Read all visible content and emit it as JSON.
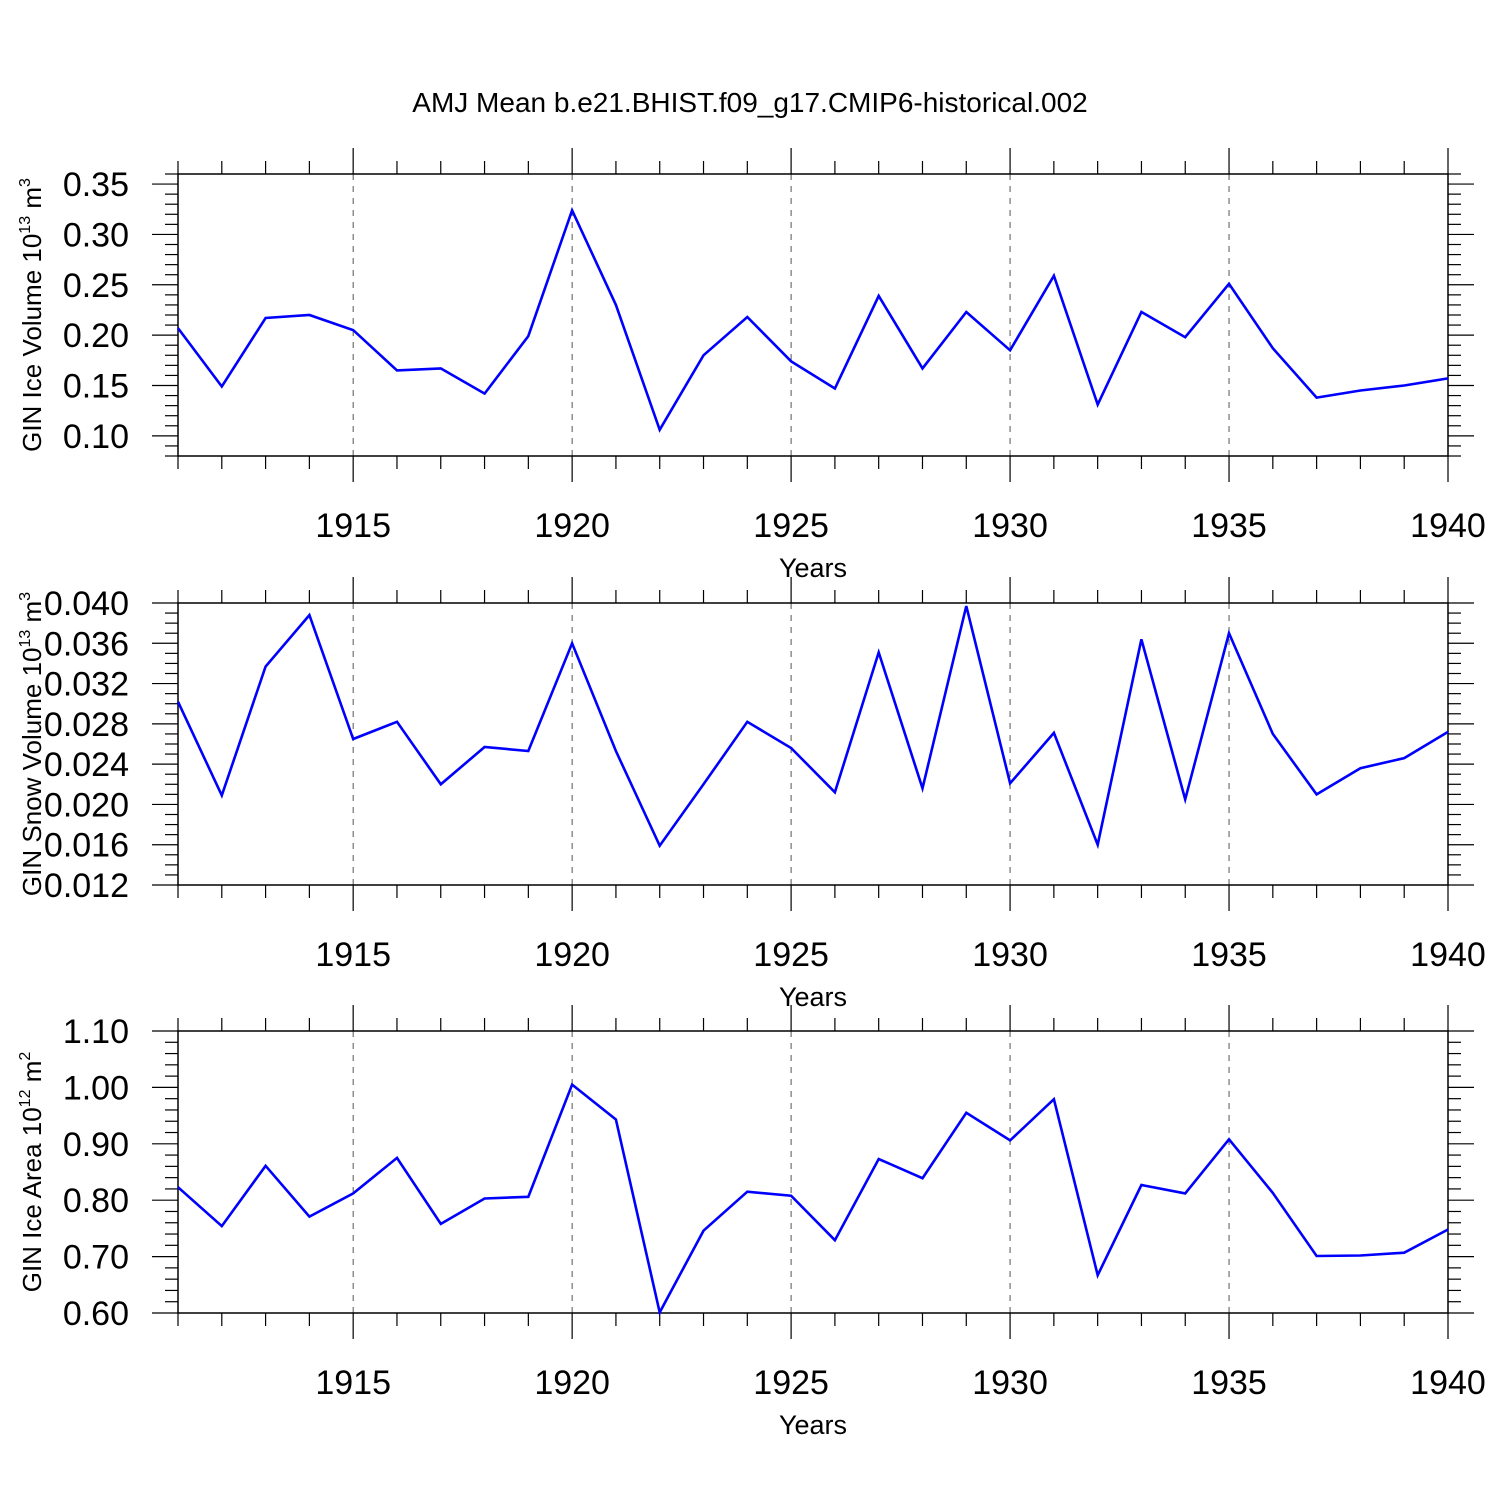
{
  "figure_title": "AMJ Mean b.e21.BHIST.f09_g17.CMIP6-historical.002",
  "colors": {
    "line": "#0000ff",
    "axis": "#000000",
    "grid": "#555555",
    "background": "#ffffff"
  },
  "chart_data": [
    {
      "type": "line",
      "name": "GIN Ice Volume",
      "ylabel": {
        "text": "GIN Ice Volume 10",
        "exponent": "13",
        "unit": "m",
        "unit_exponent": "3"
      },
      "xlabel": "Years",
      "xlim": [
        1911,
        1940
      ],
      "ylim": [
        0.08,
        0.36
      ],
      "x_ticks": [
        1915,
        1920,
        1925,
        1930,
        1935,
        1940
      ],
      "y_ticks": [
        0.1,
        0.15,
        0.2,
        0.25,
        0.3,
        0.35
      ],
      "y_tick_labels": [
        "0.10",
        "0.15",
        "0.20",
        "0.25",
        "0.30",
        "0.35"
      ],
      "y_minor_step": 0.01,
      "grid": "vertical dashed at major x ticks",
      "x": [
        1911,
        1912,
        1913,
        1914,
        1915,
        1916,
        1917,
        1918,
        1919,
        1920,
        1921,
        1922,
        1923,
        1924,
        1925,
        1926,
        1927,
        1928,
        1929,
        1930,
        1931,
        1932,
        1933,
        1934,
        1935,
        1936,
        1937,
        1938,
        1939,
        1940
      ],
      "values": [
        0.207,
        0.149,
        0.217,
        0.22,
        0.205,
        0.165,
        0.167,
        0.142,
        0.199,
        0.324,
        0.23,
        0.106,
        0.18,
        0.218,
        0.174,
        0.147,
        0.239,
        0.167,
        0.223,
        0.185,
        0.259,
        0.131,
        0.223,
        0.198,
        0.251,
        0.187,
        0.138,
        0.145,
        0.15,
        0.157
      ]
    },
    {
      "type": "line",
      "name": "GIN Snow Volume",
      "ylabel": {
        "text": "GIN Snow Volume 10",
        "exponent": "13",
        "unit": "m",
        "unit_exponent": "3"
      },
      "xlabel": "Years",
      "xlim": [
        1911,
        1940
      ],
      "ylim": [
        0.012,
        0.04
      ],
      "x_ticks": [
        1915,
        1920,
        1925,
        1930,
        1935,
        1940
      ],
      "y_ticks": [
        0.012,
        0.016,
        0.02,
        0.024,
        0.028,
        0.032,
        0.036,
        0.04
      ],
      "y_tick_labels": [
        "0.012",
        "0.016",
        "0.020",
        "0.024",
        "0.028",
        "0.032",
        "0.036",
        "0.040"
      ],
      "y_minor_step": 0.001,
      "grid": "vertical dashed at major x ticks",
      "x": [
        1911,
        1912,
        1913,
        1914,
        1915,
        1916,
        1917,
        1918,
        1919,
        1920,
        1921,
        1922,
        1923,
        1924,
        1925,
        1926,
        1927,
        1928,
        1929,
        1930,
        1931,
        1932,
        1933,
        1934,
        1935,
        1936,
        1937,
        1938,
        1939,
        1940
      ],
      "values": [
        0.0302,
        0.0209,
        0.0337,
        0.0388,
        0.0265,
        0.0282,
        0.022,
        0.0257,
        0.0253,
        0.036,
        0.0253,
        0.0159,
        0.022,
        0.0282,
        0.0256,
        0.0212,
        0.0351,
        0.0216,
        0.0397,
        0.0221,
        0.0271,
        0.016,
        0.0364,
        0.0205,
        0.037,
        0.027,
        0.021,
        0.0236,
        0.0246,
        0.0272
      ]
    },
    {
      "type": "line",
      "name": "GIN Ice Area",
      "ylabel": {
        "text": "GIN Ice Area 10",
        "exponent": "12",
        "unit": "m",
        "unit_exponent": "2"
      },
      "xlabel": "Years",
      "xlim": [
        1911,
        1940
      ],
      "ylim": [
        0.6,
        1.1
      ],
      "x_ticks": [
        1915,
        1920,
        1925,
        1930,
        1935,
        1940
      ],
      "y_ticks": [
        0.6,
        0.7,
        0.8,
        0.9,
        1.0,
        1.1
      ],
      "y_tick_labels": [
        "0.60",
        "0.70",
        "0.80",
        "0.90",
        "1.00",
        "1.10"
      ],
      "y_minor_step": 0.02,
      "grid": "vertical dashed at major x ticks",
      "x": [
        1911,
        1912,
        1913,
        1914,
        1915,
        1916,
        1917,
        1918,
        1919,
        1920,
        1921,
        1922,
        1923,
        1924,
        1925,
        1926,
        1927,
        1928,
        1929,
        1930,
        1931,
        1932,
        1933,
        1934,
        1935,
        1936,
        1937,
        1938,
        1939,
        1940
      ],
      "values": [
        0.823,
        0.754,
        0.861,
        0.771,
        0.812,
        0.875,
        0.758,
        0.803,
        0.806,
        1.005,
        0.943,
        0.601,
        0.746,
        0.815,
        0.808,
        0.729,
        0.873,
        0.839,
        0.955,
        0.906,
        0.979,
        0.667,
        0.827,
        0.812,
        0.908,
        0.813,
        0.701,
        0.702,
        0.707,
        0.748
      ]
    }
  ]
}
